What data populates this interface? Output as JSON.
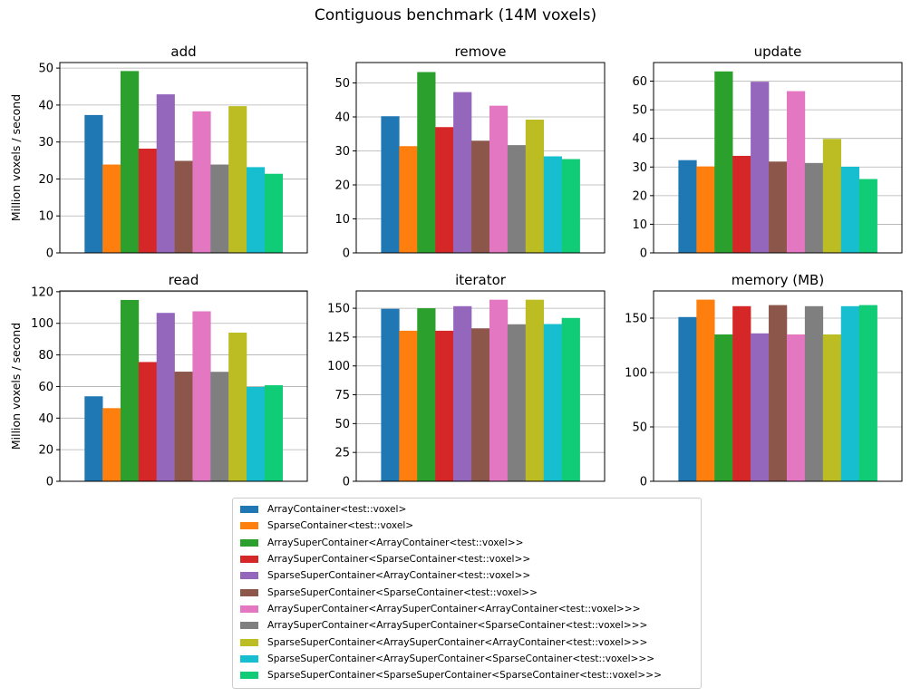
{
  "figure": {
    "suptitle": "Contiguous benchmark (14M voxels)"
  },
  "series_colors": [
    "#1f77b4",
    "#ff7f0e",
    "#2ca02c",
    "#d62728",
    "#9467bd",
    "#8c564b",
    "#e377c2",
    "#7f7f7f",
    "#bcbd22",
    "#17becf",
    "#11cc77"
  ],
  "chart_data": [
    {
      "type": "bar",
      "title": "add",
      "ylabel": "Million voxels / second",
      "ylim": [
        0,
        51.5
      ],
      "yticks": [
        0,
        10,
        20,
        30,
        40,
        50
      ],
      "grid": "y",
      "values": [
        37.3,
        23.9,
        49.2,
        28.2,
        42.9,
        24.9,
        38.3,
        23.9,
        39.7,
        23.2,
        21.4
      ]
    },
    {
      "type": "bar",
      "title": "remove",
      "ylabel": "",
      "ylim": [
        0,
        56
      ],
      "yticks": [
        0,
        10,
        20,
        30,
        40,
        50
      ],
      "grid": "y",
      "values": [
        40.2,
        31.4,
        53.2,
        37.0,
        47.3,
        33.0,
        43.3,
        31.7,
        39.2,
        28.4,
        27.6
      ]
    },
    {
      "type": "bar",
      "title": "update",
      "ylabel": "",
      "ylim": [
        0,
        66.5
      ],
      "yticks": [
        0,
        10,
        20,
        30,
        40,
        50,
        60
      ],
      "grid": "y",
      "values": [
        32.4,
        30.2,
        63.4,
        33.9,
        59.8,
        31.9,
        56.5,
        31.4,
        39.8,
        30.1,
        25.8
      ]
    },
    {
      "type": "bar",
      "title": "read",
      "ylabel": "Million voxels / second",
      "ylim": [
        0,
        120.5
      ],
      "yticks": [
        0,
        20,
        40,
        60,
        80,
        100,
        120
      ],
      "grid": "y",
      "values": [
        53.8,
        46.3,
        114.8,
        75.5,
        106.6,
        69.4,
        107.6,
        69.3,
        94.1,
        59.7,
        60.8
      ]
    },
    {
      "type": "bar",
      "title": "iterator",
      "ylabel": "",
      "ylim": [
        0,
        165
      ],
      "yticks": [
        0,
        25,
        50,
        75,
        100,
        125,
        150
      ],
      "grid": "y",
      "values": [
        149.5,
        130.5,
        150.0,
        130.5,
        151.8,
        132.6,
        157.4,
        136.1,
        157.4,
        136.3,
        141.6
      ]
    },
    {
      "type": "bar",
      "title": "memory (MB)",
      "ylabel": "",
      "ylim": [
        0,
        175
      ],
      "yticks": [
        0,
        50,
        100,
        150
      ],
      "grid": "y",
      "values": [
        151,
        167,
        135,
        161,
        136,
        162,
        135,
        161,
        135,
        161,
        162
      ]
    }
  ],
  "legend": {
    "placement": "bottom-center",
    "items": [
      "ArrayContainer<test::voxel>",
      "SparseContainer<test::voxel>",
      "ArraySuperContainer<ArrayContainer<test::voxel>>",
      "ArraySuperContainer<SparseContainer<test::voxel>>",
      "SparseSuperContainer<ArrayContainer<test::voxel>>",
      "SparseSuperContainer<SparseContainer<test::voxel>>",
      "ArraySuperContainer<ArraySuperContainer<ArrayContainer<test::voxel>>>",
      "ArraySuperContainer<ArraySuperContainer<SparseContainer<test::voxel>>>",
      "SparseSuperContainer<ArraySuperContainer<ArrayContainer<test::voxel>>>",
      "SparseSuperContainer<ArraySuperContainer<SparseContainer<test::voxel>>>",
      "SparseSuperContainer<SparseSuperContainer<SparseContainer<test::voxel>>>"
    ]
  }
}
